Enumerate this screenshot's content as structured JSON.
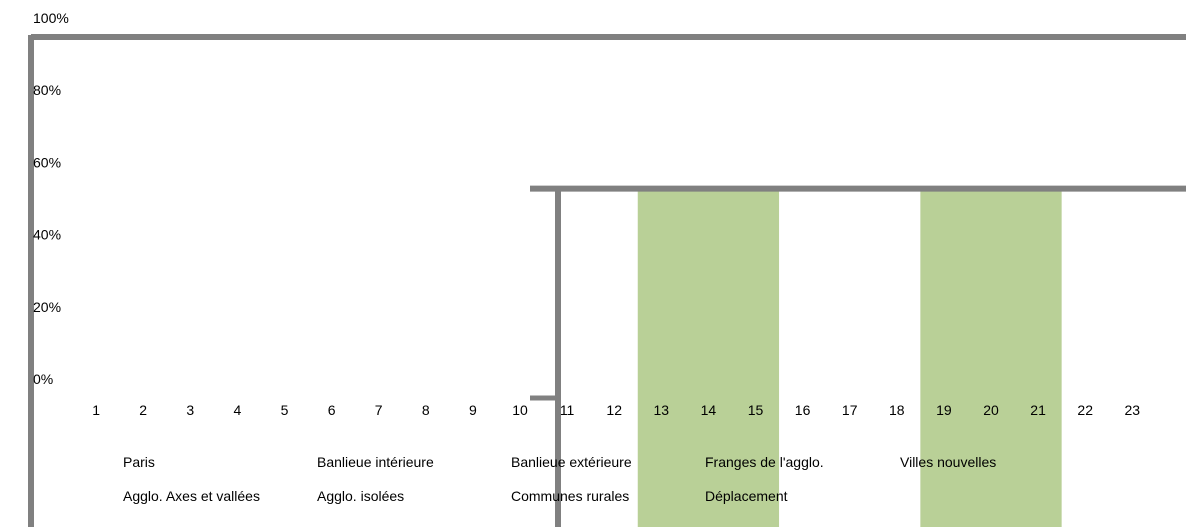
{
  "chart_data": {
    "type": "bar",
    "title": "",
    "xlabel": "",
    "ylabel": "",
    "ylim": [
      0,
      100
    ],
    "y_ticks": [
      "0%",
      "20%",
      "40%",
      "60%",
      "80%",
      "100%"
    ],
    "categories": [
      "1",
      "2",
      "3",
      "4",
      "5",
      "6",
      "7",
      "8",
      "9",
      "10",
      "11",
      "12",
      "13",
      "14",
      "15",
      "16",
      "17",
      "18",
      "19",
      "20",
      "21",
      "22",
      "23"
    ],
    "highlight_bands": [
      {
        "from": "13",
        "to": "15",
        "color": "#b9d097"
      },
      {
        "from": "19",
        "to": "21",
        "color": "#b9d097"
      }
    ],
    "guide_lines": [
      {
        "kind": "horizontal",
        "value": 100
      },
      {
        "kind": "horizontal",
        "value": 58,
        "from_category": "10"
      },
      {
        "kind": "vertical",
        "at_category": "10",
        "from_value": 0
      },
      {
        "kind": "vertical",
        "at_category": "0",
        "from_value": 100
      }
    ],
    "guide_color": "#808080",
    "legend": [
      [
        "Paris",
        "Banlieue intérieure",
        "Banlieue extérieure",
        "Franges de l'agglo.",
        "Villes nouvelles"
      ],
      [
        "Agglo. Axes et vallées",
        "Agglo. isolées",
        "Communes rurales",
        "Déplacement"
      ]
    ],
    "grid": false
  }
}
